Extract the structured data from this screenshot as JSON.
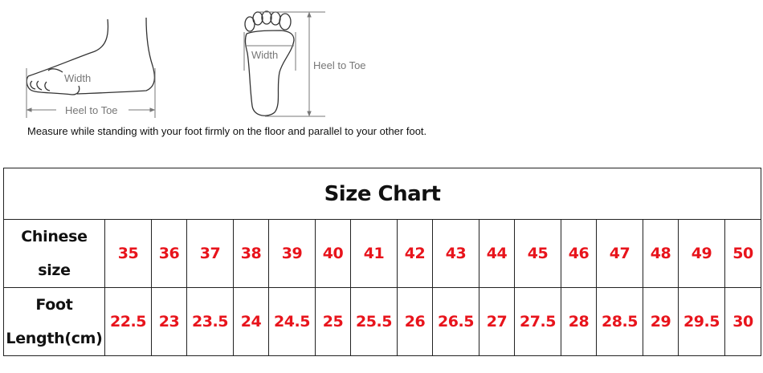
{
  "illustration": {
    "side_view": {
      "width_label": "Width",
      "length_label": "Heel to Toe"
    },
    "sole_view": {
      "width_label": "Width",
      "length_label": "Heel to Toe"
    },
    "instruction": "Measure while standing with your foot firmly on the floor and parallel to your other foot."
  },
  "size_chart": {
    "title": "Size Chart",
    "rows": [
      {
        "header_line1": "Chinese",
        "header_line2": "size",
        "values": [
          "35",
          "36",
          "37",
          "38",
          "39",
          "40",
          "41",
          "42",
          "43",
          "44",
          "45",
          "46",
          "47",
          "48",
          "49",
          "50"
        ]
      },
      {
        "header_line1": "Foot",
        "header_line2": "Length(cm)",
        "values": [
          "22.5",
          "23",
          "23.5",
          "24",
          "24.5",
          "25",
          "25.5",
          "26",
          "26.5",
          "27",
          "27.5",
          "28",
          "28.5",
          "29",
          "29.5",
          "30"
        ]
      }
    ],
    "value_color": "#e8141c"
  }
}
